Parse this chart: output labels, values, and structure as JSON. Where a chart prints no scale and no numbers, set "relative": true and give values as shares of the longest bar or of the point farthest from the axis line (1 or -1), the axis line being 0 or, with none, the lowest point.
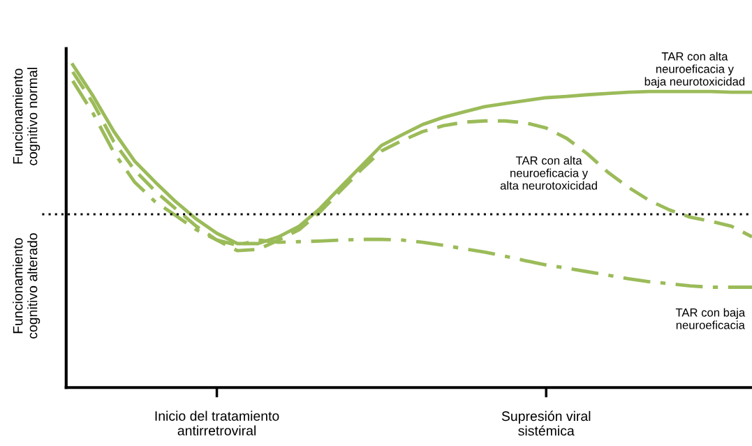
{
  "chart_data": {
    "type": "line",
    "relative": true,
    "legend": false,
    "grid": false,
    "categories": [
      null,
      null,
      null,
      null,
      null,
      null,
      null,
      "Inicio del tratamiento\nantirretroviral",
      null,
      null,
      null,
      null,
      null,
      null,
      null,
      null,
      null,
      null,
      null,
      null,
      null,
      null,
      null,
      "Supresión viral\nsistémica",
      null,
      null,
      null,
      null,
      null,
      null,
      null,
      null,
      null,
      null
    ],
    "series": [
      {
        "name": "TAR con alta\nneuroeficacia y\nbaja neurotoxicidad",
        "color": "#9bbb59",
        "line_style": "solid",
        "values": [
          1.0,
          0.902,
          0.793,
          0.702,
          0.637,
          0.576,
          0.522,
          0.478,
          0.446,
          0.446,
          0.467,
          0.5,
          0.554,
          0.62,
          0.685,
          0.75,
          0.783,
          0.815,
          0.837,
          0.854,
          0.87,
          0.88,
          0.889,
          0.898,
          0.902,
          0.907,
          0.911,
          0.915,
          0.917,
          0.917,
          0.917,
          0.917,
          0.915,
          0.915
        ]
      },
      {
        "name": "TAR con alta\nneuroeficacia y\nalta neurotoxicidad",
        "color": "#9bbb59",
        "line_style": "dashed",
        "values": [
          0.978,
          0.88,
          0.761,
          0.674,
          0.609,
          0.554,
          0.5,
          0.457,
          0.424,
          0.428,
          0.457,
          0.489,
          0.543,
          0.609,
          0.674,
          0.733,
          0.765,
          0.793,
          0.811,
          0.822,
          0.826,
          0.826,
          0.82,
          0.804,
          0.772,
          0.724,
          0.667,
          0.62,
          0.58,
          0.55,
          0.528,
          0.515,
          0.5,
          0.467
        ]
      },
      {
        "name": "TAR con baja\nneuroeficacia",
        "color": "#9bbb59",
        "line_style": "dashdot",
        "values": [
          0.95,
          0.848,
          0.728,
          0.637,
          0.576,
          0.533,
          0.489,
          0.457,
          0.441,
          0.457,
          0.45,
          0.452,
          0.454,
          0.457,
          0.459,
          0.459,
          0.457,
          0.45,
          0.441,
          0.43,
          0.42,
          0.407,
          0.393,
          0.38,
          0.37,
          0.359,
          0.348,
          0.337,
          0.328,
          0.322,
          0.315,
          0.311,
          0.311,
          0.311
        ]
      }
    ],
    "ref_lines": [
      {
        "axis": "y",
        "value": 0.537,
        "color": "#000000",
        "line_style": "dotted"
      }
    ],
    "annotations": [
      "Funcionamiento\ncognitivo normal",
      "Funcionamiento\ncognitivo alterado"
    ]
  }
}
